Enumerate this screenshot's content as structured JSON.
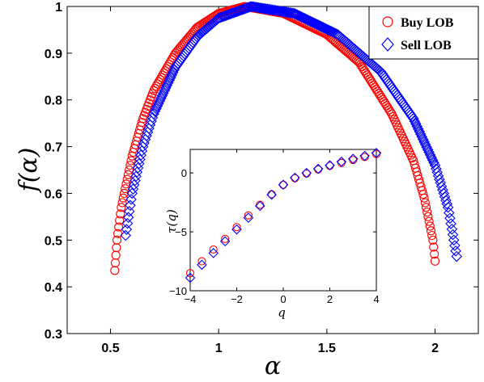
{
  "chart_data": [
    {
      "type": "scatter",
      "xlabel": "α",
      "ylabel": "f(α)",
      "xlim": [
        0.3,
        2.2
      ],
      "ylim": [
        0.3,
        1.0
      ],
      "xticks": [
        "0.5",
        "1",
        "1.5",
        "2"
      ],
      "yticks": [
        "0.3",
        "0.4",
        "0.5",
        "0.6",
        "0.7",
        "0.8",
        "0.9",
        "1"
      ],
      "legend_position": "top-right",
      "series": [
        {
          "name": "Buy LOB",
          "marker": "circle",
          "color": "#ff0000",
          "alpha_min": 0.52,
          "alpha_peak": 1.12,
          "alpha_max": 2.0,
          "f_left": 0.435,
          "f_right": 0.455,
          "points": [
            [
              0.52,
              0.435
            ],
            [
              0.53,
              0.5
            ],
            [
              0.55,
              0.57
            ],
            [
              0.6,
              0.68
            ],
            [
              0.65,
              0.76
            ],
            [
              0.7,
              0.82
            ],
            [
              0.8,
              0.9
            ],
            [
              0.9,
              0.955
            ],
            [
              1.0,
              0.985
            ],
            [
              1.12,
              1.0
            ],
            [
              1.3,
              0.985
            ],
            [
              1.5,
              0.94
            ],
            [
              1.65,
              0.88
            ],
            [
              1.8,
              0.77
            ],
            [
              1.9,
              0.67
            ],
            [
              1.95,
              0.59
            ],
            [
              1.99,
              0.5
            ],
            [
              2.0,
              0.455
            ]
          ]
        },
        {
          "name": "Sell LOB",
          "marker": "diamond",
          "color": "#0000ff",
          "alpha_min": 0.57,
          "alpha_peak": 1.15,
          "alpha_max": 2.1,
          "f_left": 0.51,
          "f_right": 0.465,
          "points": [
            [
              0.57,
              0.51
            ],
            [
              0.6,
              0.6
            ],
            [
              0.65,
              0.7
            ],
            [
              0.7,
              0.77
            ],
            [
              0.8,
              0.87
            ],
            [
              0.9,
              0.935
            ],
            [
              1.0,
              0.975
            ],
            [
              1.15,
              1.0
            ],
            [
              1.35,
              0.985
            ],
            [
              1.55,
              0.94
            ],
            [
              1.75,
              0.86
            ],
            [
              1.9,
              0.76
            ],
            [
              2.0,
              0.66
            ],
            [
              2.06,
              0.57
            ],
            [
              2.1,
              0.465
            ]
          ]
        }
      ]
    },
    {
      "type": "scatter",
      "xlabel": "q",
      "ylabel": "τ(q)",
      "xlim": [
        -4,
        4
      ],
      "ylim": [
        -10,
        2
      ],
      "xticks": [
        "−4",
        "−2",
        "0",
        "2",
        "4"
      ],
      "yticks": [
        "−10",
        "−5",
        "0"
      ],
      "series": [
        {
          "name": "Buy LOB",
          "marker": "circle",
          "color": "#ff0000",
          "q": [
            -4,
            -3.5,
            -3,
            -2.5,
            -2,
            -1.5,
            -1,
            -0.5,
            0,
            0.5,
            1,
            1.5,
            2,
            2.5,
            3,
            3.5,
            4
          ],
          "tau": [
            -8.5,
            -7.5,
            -6.5,
            -5.6,
            -4.6,
            -3.6,
            -2.7,
            -1.8,
            -1.0,
            -0.45,
            -0.05,
            0.3,
            0.6,
            0.85,
            1.1,
            1.35,
            1.6
          ]
        },
        {
          "name": "Sell LOB",
          "marker": "diamond",
          "color": "#0000ff",
          "q": [
            -4,
            -3.5,
            -3,
            -2.5,
            -2,
            -1.5,
            -1,
            -0.5,
            0,
            0.5,
            1,
            1.5,
            2,
            2.5,
            3,
            3.5,
            4
          ],
          "tau": [
            -8.9,
            -7.8,
            -6.8,
            -5.8,
            -4.8,
            -3.8,
            -2.8,
            -1.85,
            -1.0,
            -0.4,
            0.0,
            0.35,
            0.65,
            0.95,
            1.2,
            1.45,
            1.7
          ]
        }
      ]
    }
  ]
}
